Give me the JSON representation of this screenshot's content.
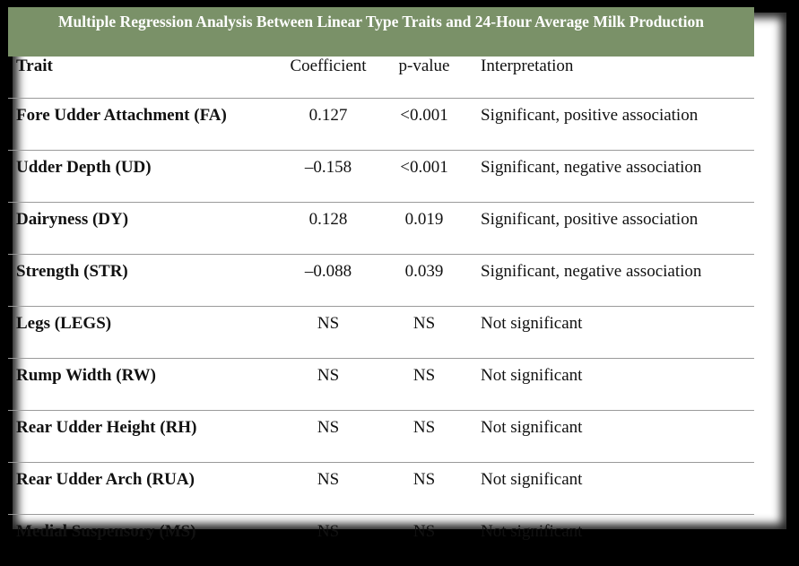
{
  "title": "Multiple Regression Analysis Between Linear Type Traits and 24-Hour Average Milk Production",
  "columns": [
    "Trait",
    "Coefficient",
    "p-value",
    "Interpretation"
  ],
  "rows": [
    {
      "trait": "Fore Udder Attachment (FA)",
      "coefficient": "0.127",
      "p_value": "<0.001",
      "interpretation": "Significant, positive association"
    },
    {
      "trait": "Udder Depth (UD)",
      "coefficient": "–0.158",
      "p_value": "<0.001",
      "interpretation": "Significant, negative association"
    },
    {
      "trait": "Dairyness (DY)",
      "coefficient": "0.128",
      "p_value": "0.019",
      "interpretation": "Significant, positive association"
    },
    {
      "trait": "Strength (STR)",
      "coefficient": "–0.088",
      "p_value": "0.039",
      "interpretation": "Significant, negative association"
    },
    {
      "trait": "Legs (LEGS)",
      "coefficient": "NS",
      "p_value": "NS",
      "interpretation": "Not significant"
    },
    {
      "trait": "Rump Width (RW)",
      "coefficient": "NS",
      "p_value": "NS",
      "interpretation": "Not significant"
    },
    {
      "trait": "Rear Udder Height (RH)",
      "coefficient": "NS",
      "p_value": "NS",
      "interpretation": "Not significant"
    },
    {
      "trait": "Rear Udder Arch (RUA)",
      "coefficient": "NS",
      "p_value": "NS",
      "interpretation": "Not significant"
    },
    {
      "trait": "Medial Suspensory (MS)",
      "coefficient": "NS",
      "p_value": "NS",
      "interpretation": "Not significant"
    }
  ],
  "colors": {
    "title_band": "#7a9168",
    "frame": "#000000"
  }
}
